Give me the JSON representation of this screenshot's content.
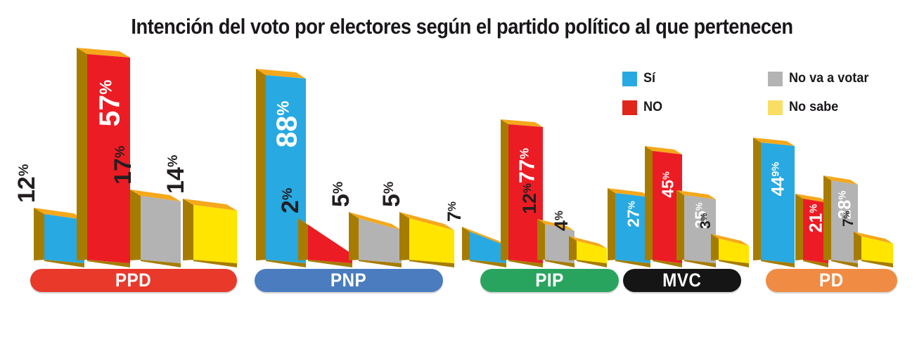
{
  "title": "Intención del voto por electores según el partido político al que pertenecen",
  "legend": {
    "items": [
      {
        "label": "Sí",
        "color": "#29A9E1"
      },
      {
        "label": "NO",
        "color": "#E1251B"
      },
      {
        "label": "No va a votar",
        "color": "#B3B3B3"
      },
      {
        "label": "No sabe",
        "color": "#F9DE63"
      }
    ]
  },
  "chart_data": {
    "type": "bar",
    "unit": "%",
    "title": "Intención del voto por electores según el partido político al que pertenecen",
    "series": [
      "Sí",
      "NO",
      "No va a votar",
      "No sabe"
    ],
    "series_colors": {
      "Sí": "#29A9E1",
      "NO": "#EC1C24",
      "No va a votar": "#B3B3B3",
      "No sabe": "#FFE500"
    },
    "bar_top_color": "#F5A81C",
    "bar_side_color": "#A67C00",
    "label_color_inside": "#FFFFFF",
    "label_color_outside": "#231F20",
    "legend_position": "top-right",
    "groups": [
      {
        "party": "PPD",
        "pill_color": "#E8392B",
        "bars": [
          {
            "series": "Sí",
            "value": 12,
            "label_num": "12",
            "label_sup": "%",
            "label_pos": "out"
          },
          {
            "series": "NO",
            "value": 57,
            "label_num": "57",
            "label_sup": "%",
            "label_pos": "in"
          },
          {
            "series": "No va a votar",
            "value": 17,
            "label_num": "17",
            "label_sup": "%",
            "label_pos": "out"
          },
          {
            "series": "No sabe",
            "value": 14,
            "label_num": "14",
            "label_sup": "%",
            "label_pos": "out"
          }
        ]
      },
      {
        "party": "PNP",
        "pill_color": "#4A7CBF",
        "bars": [
          {
            "series": "Sí",
            "value": 88,
            "label_num": "88",
            "label_sup": "%",
            "label_pos": "in"
          },
          {
            "series": "NO",
            "value": 2,
            "label_num": "2",
            "label_sup": "%",
            "label_pos": "out"
          },
          {
            "series": "No va a votar",
            "value": 5,
            "label_num": "5",
            "label_sup": "%",
            "label_pos": "out"
          },
          {
            "series": "No sabe",
            "value": 5,
            "label_num": "5",
            "label_sup": "%",
            "label_pos": "out"
          }
        ]
      },
      {
        "party": "PIP",
        "pill_color": "#29A45F",
        "bars": [
          {
            "series": "Sí",
            "value": 7,
            "label_num": "7",
            "label_sup": "%",
            "label_pos": "out"
          },
          {
            "series": "NO",
            "value": 77,
            "label_num": "77",
            "label_sup": "%",
            "label_pos": "in"
          },
          {
            "series": "No va a votar",
            "value": 12,
            "label_num": "12",
            "label_sup": "%",
            "label_pos": "out"
          },
          {
            "series": "No sabe",
            "value": 4,
            "label_num": "4",
            "label_sup": "%",
            "label_pos": "out"
          }
        ]
      },
      {
        "party": "MVC",
        "pill_color": "#151515",
        "bars": [
          {
            "series": "Sí",
            "value": 27,
            "label_num": "27",
            "label_sup": "%",
            "label_pos": "in"
          },
          {
            "series": "NO",
            "value": 45,
            "label_num": "45",
            "label_sup": "%",
            "label_pos": "in"
          },
          {
            "series": "No va a votar",
            "value": 25,
            "label_num": "25",
            "label_sup": "%",
            "label_pos": "in"
          },
          {
            "series": "No sabe",
            "value": 3,
            "label_num": "3",
            "label_sup": "%",
            "label_pos": "out"
          }
        ]
      },
      {
        "party": "PD",
        "pill_color": "#F08B44",
        "bars": [
          {
            "series": "Sí",
            "value": 44.9,
            "label_num": "44",
            "label_sup": "9%",
            "label_pos": "in"
          },
          {
            "series": "NO",
            "value": 21,
            "label_num": "21",
            "label_sup": "%",
            "label_pos": "in"
          },
          {
            "series": "No va a votar",
            "value": 28,
            "label_num": "28",
            "label_sup": "%",
            "label_pos": "in"
          },
          {
            "series": "No sabe",
            "value": 7,
            "label_num": "7",
            "label_sup": "%",
            "label_pos": "out"
          }
        ]
      }
    ]
  }
}
